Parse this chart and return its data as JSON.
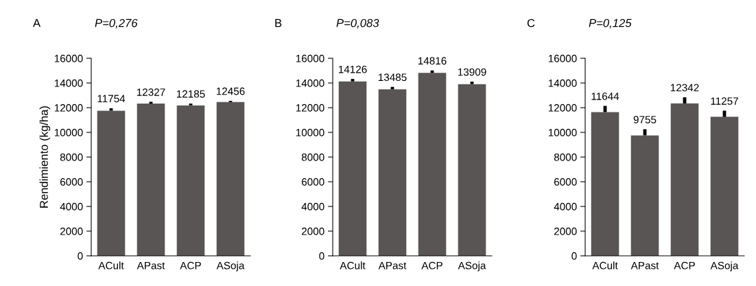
{
  "chart_data": [
    {
      "type": "bar",
      "title": "A",
      "subtitle": "P=0,276",
      "ylabel": "Rendimiento (kg/ha)",
      "categories": [
        "ACult",
        "APast",
        "ACP",
        "ASoja"
      ],
      "values": [
        11754,
        12327,
        12185,
        12456
      ],
      "color": "#595555",
      "errors": [
        [
          11754,
          11954
        ],
        [
          12327,
          12477
        ],
        [
          12185,
          12335
        ],
        [
          12456,
          12556
        ]
      ],
      "data_labels": true,
      "ylim": [
        0,
        16000
      ],
      "yticks": [
        0,
        2000,
        4000,
        6000,
        8000,
        10000,
        12000,
        14000,
        16000
      ],
      "grid": false,
      "legend": false
    },
    {
      "type": "bar",
      "title": "B",
      "subtitle": "P=0,083",
      "categories": [
        "ACult",
        "APast",
        "ACP",
        "ASoja"
      ],
      "values": [
        14126,
        13485,
        14816,
        13909
      ],
      "color": "#595555",
      "errors": [
        [
          14126,
          14326
        ],
        [
          13485,
          13685
        ],
        [
          14816,
          15016
        ],
        [
          13909,
          14109
        ]
      ],
      "data_labels": true,
      "ylim": [
        0,
        16000
      ],
      "yticks": [
        0,
        2000,
        4000,
        6000,
        8000,
        10000,
        12000,
        14000,
        16000
      ],
      "grid": false,
      "legend": false
    },
    {
      "type": "bar",
      "title": "C",
      "subtitle": "P=0,125",
      "categories": [
        "ACult",
        "APast",
        "ACP",
        "ASoja"
      ],
      "values": [
        11644,
        9755,
        12342,
        11257
      ],
      "color": "#595555",
      "errors": [
        [
          11644,
          12144
        ],
        [
          9755,
          10255
        ],
        [
          12342,
          12842
        ],
        [
          11257,
          11757
        ]
      ],
      "data_labels": true,
      "ylim": [
        0,
        16000
      ],
      "yticks": [
        0,
        2000,
        4000,
        6000,
        8000,
        10000,
        12000,
        14000,
        16000
      ],
      "grid": false,
      "legend": false
    }
  ]
}
